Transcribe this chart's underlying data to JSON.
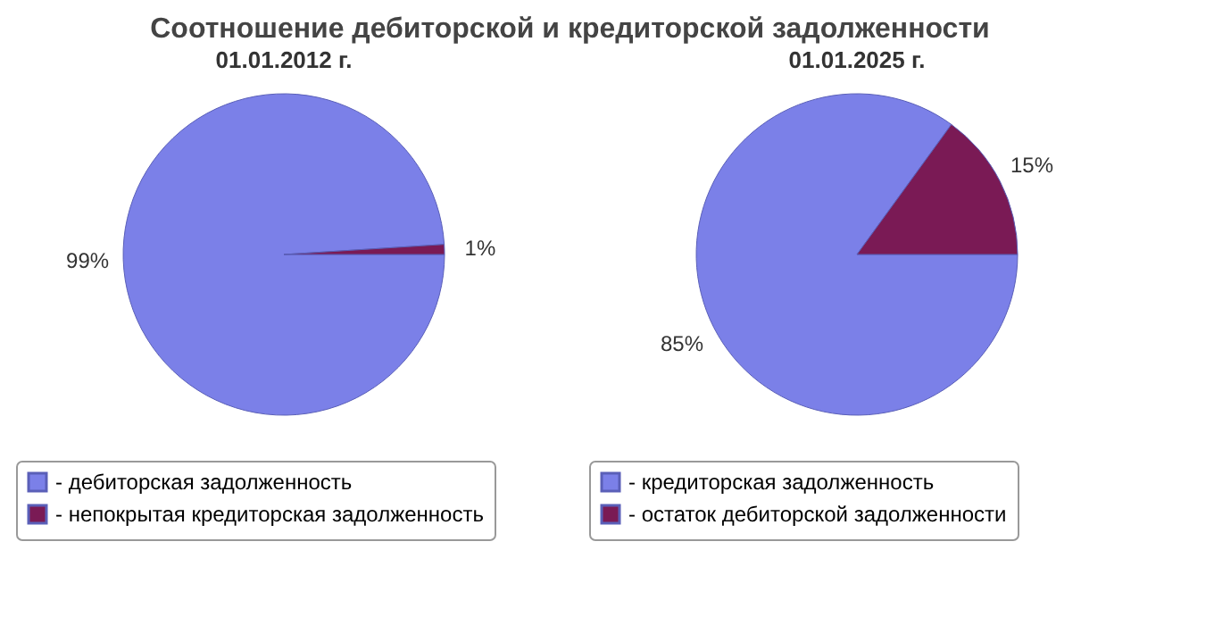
{
  "chart_data": [
    {
      "type": "other",
      "title": "Соотношение дебиторской и кредиторской задолженности"
    },
    {
      "type": "pie",
      "title": "01.01.2012 г.",
      "categories": [
        "- дебиторская задолженность",
        "- непокрытая кредиторская задолженность"
      ],
      "values": [
        99,
        1
      ],
      "colors": [
        "#7b80e8",
        "#7a1a55"
      ],
      "value_labels": [
        "99%",
        "1%"
      ],
      "legend": "bottom"
    },
    {
      "type": "pie",
      "title": "01.01.2025 г.",
      "categories": [
        "- кредиторская задолженность",
        "- остаток дебиторской задолженности"
      ],
      "values": [
        85,
        15
      ],
      "colors": [
        "#7b80e8",
        "#7a1a55"
      ],
      "value_labels": [
        "85%",
        "15%"
      ],
      "legend": "bottom"
    }
  ]
}
